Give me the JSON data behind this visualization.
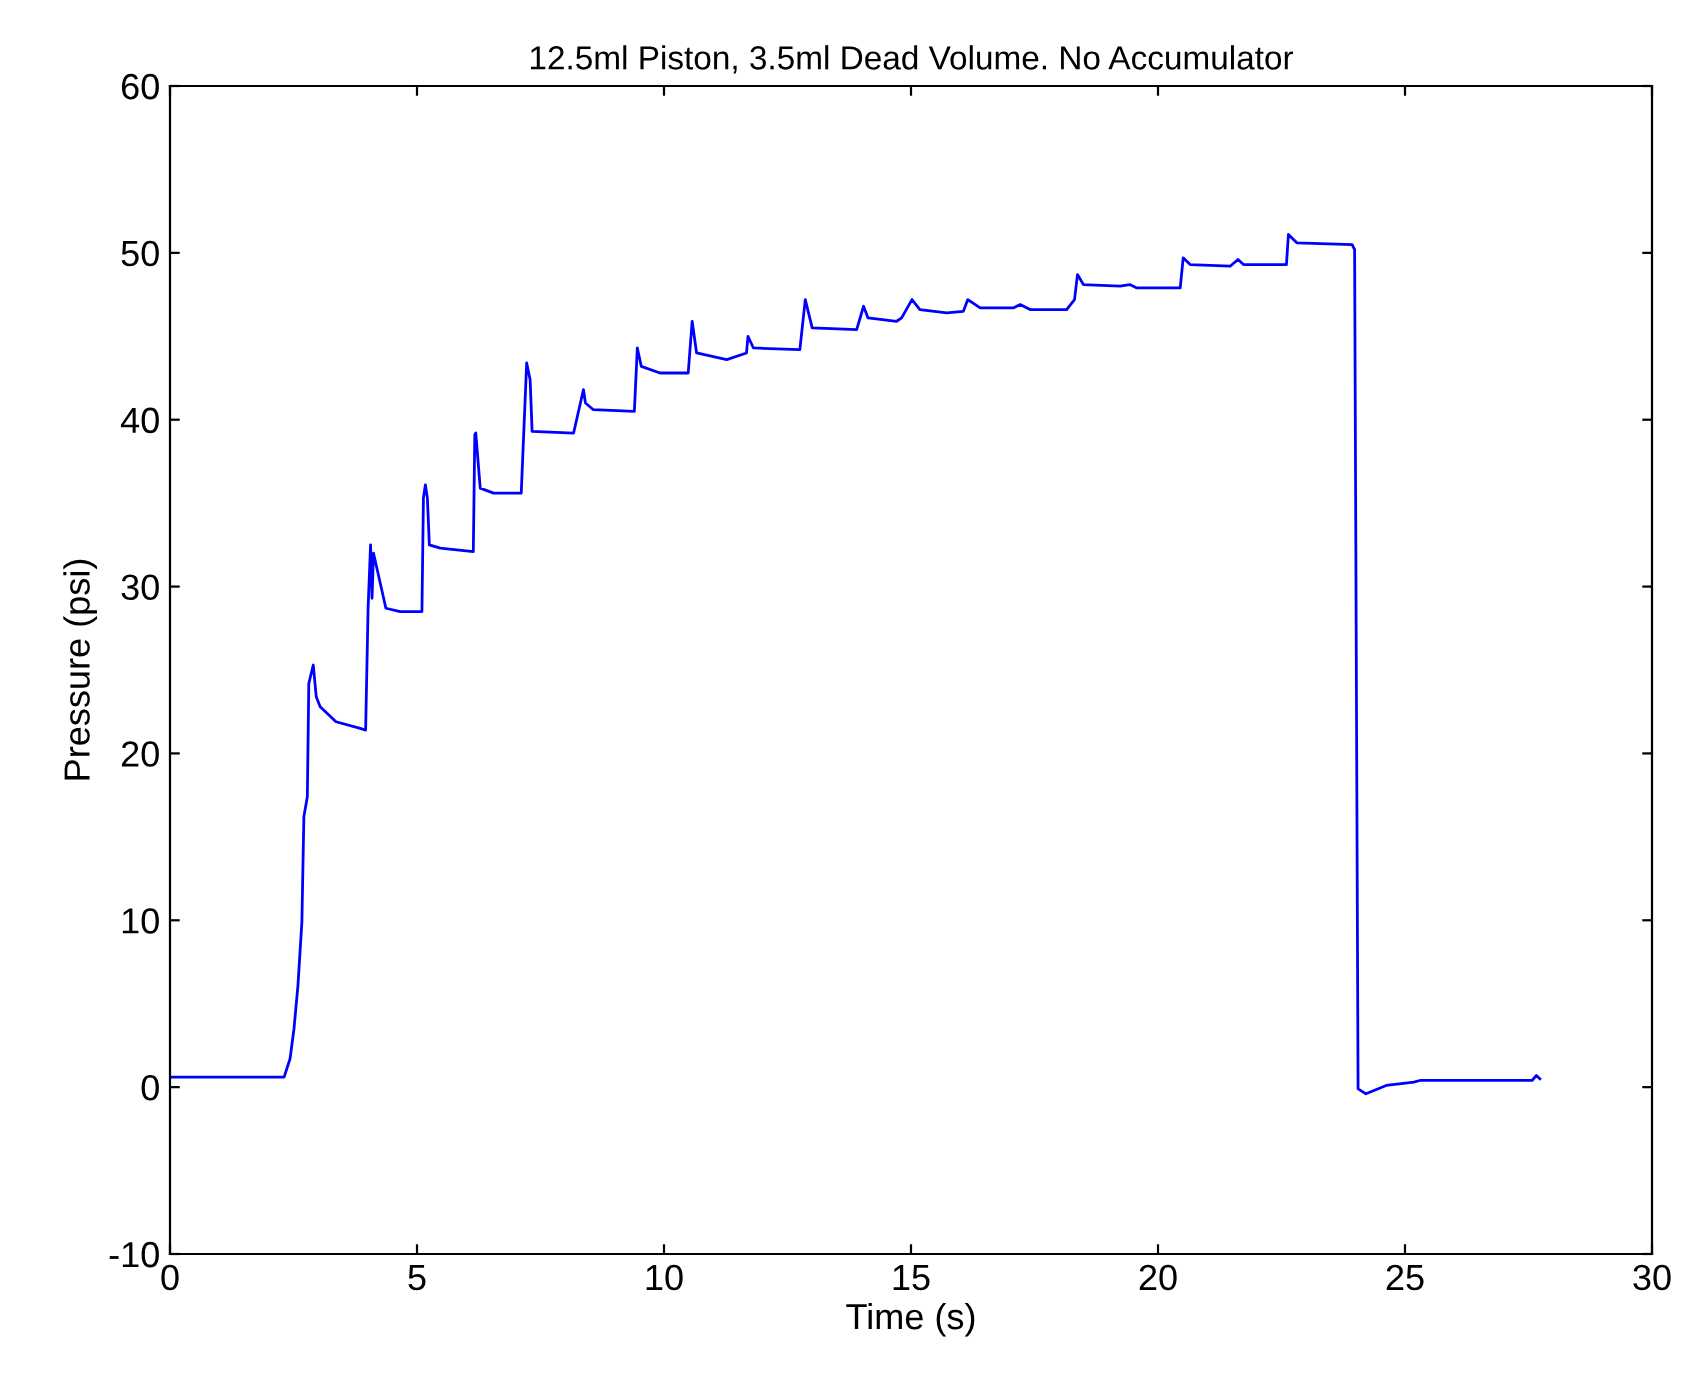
{
  "chart_data": {
    "type": "line",
    "title": "12.5ml Piston, 3.5ml Dead Volume. No Accumulator",
    "xlabel": "Time (s)",
    "ylabel": "Pressure (psi)",
    "xlim": [
      0,
      30
    ],
    "ylim": [
      -10,
      60
    ],
    "xticks": [
      0,
      5,
      10,
      15,
      20,
      25,
      30
    ],
    "yticks": [
      -10,
      0,
      10,
      20,
      30,
      40,
      50,
      60
    ],
    "grid": false,
    "marker": "none",
    "line_style": "solid",
    "series": [
      {
        "color": "#0000ff",
        "x": [
          0,
          2.23,
          2.31,
          2.43,
          2.51,
          2.59,
          2.67,
          2.71,
          2.78,
          2.81,
          2.9,
          2.96,
          3.04,
          3.36,
          3.85,
          3.96,
          4.01,
          4.06,
          4.09,
          4.12,
          4.37,
          4.66,
          5.1,
          5.13,
          5.17,
          5.21,
          5.25,
          5.47,
          6.14,
          6.17,
          6.19,
          6.28,
          6.55,
          7.11,
          7.22,
          7.29,
          7.33,
          8.17,
          8.3,
          8.37,
          8.41,
          8.57,
          9.4,
          9.46,
          9.54,
          9.92,
          10.49,
          10.57,
          10.66,
          11.27,
          11.67,
          11.7,
          11.81,
          12.75,
          12.86,
          13.0,
          13.9,
          14.04,
          14.13,
          14.71,
          14.81,
          15.02,
          15.18,
          15.72,
          16.06,
          16.15,
          16.4,
          17.07,
          17.21,
          17.41,
          18.15,
          18.31,
          18.37,
          18.49,
          19.23,
          19.43,
          19.57,
          20.45,
          20.51,
          20.65,
          21.46,
          21.62,
          21.73,
          22.6,
          22.64,
          22.81,
          23.93,
          23.98,
          24.05,
          24.21,
          24.62,
          25.18,
          25.3,
          27.57,
          27.66,
          27.73
        ],
        "values": [
          0.6,
          0.6,
          0.6,
          1.7,
          3.5,
          6.1,
          9.9,
          16.2,
          17.4,
          24.2,
          25.3,
          23.4,
          22.8,
          21.9,
          21.5,
          21.4,
          28.7,
          32.5,
          29.3,
          32.0,
          28.7,
          28.5,
          28.5,
          35.3,
          36.1,
          35.3,
          32.5,
          32.3,
          32.1,
          39.1,
          39.2,
          35.9,
          35.6,
          35.6,
          43.4,
          42.4,
          39.3,
          39.2,
          40.9,
          41.8,
          41.0,
          40.6,
          40.5,
          44.3,
          43.2,
          42.8,
          42.8,
          45.9,
          44.0,
          43.6,
          44.0,
          45.0,
          44.3,
          44.2,
          47.2,
          45.5,
          45.4,
          46.8,
          46.1,
          45.9,
          46.1,
          47.2,
          46.6,
          46.4,
          46.5,
          47.2,
          46.7,
          46.7,
          46.9,
          46.6,
          46.6,
          47.2,
          48.7,
          48.1,
          48.0,
          48.1,
          47.9,
          47.9,
          49.7,
          49.3,
          49.2,
          49.6,
          49.3,
          49.3,
          51.1,
          50.6,
          50.5,
          50.2,
          -0.1,
          -0.4,
          0.1,
          0.3,
          0.4,
          0.4,
          0.7,
          0.5
        ]
      }
    ]
  }
}
